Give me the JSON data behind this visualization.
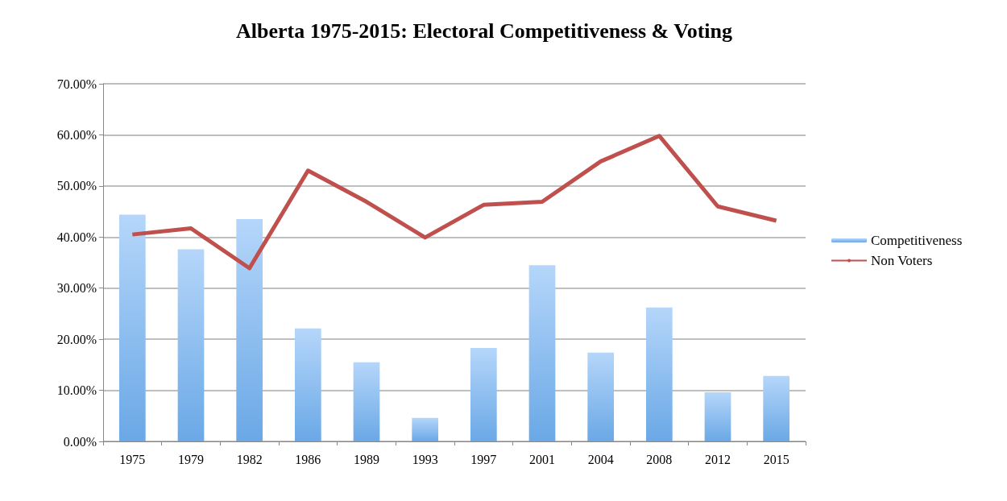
{
  "chart_data": {
    "type": "bar",
    "title": "Alberta 1975-2015: Electoral Competitiveness & Voting",
    "categories": [
      "1975",
      "1979",
      "1982",
      "1986",
      "1989",
      "1993",
      "1997",
      "2001",
      "2004",
      "2008",
      "2012",
      "2015"
    ],
    "series": [
      {
        "name": "Competitiveness",
        "color": "#6aa8e6",
        "values": [
          44.4,
          37.6,
          43.5,
          22.1,
          15.5,
          4.6,
          18.3,
          34.5,
          17.4,
          26.2,
          9.6,
          12.8
        ]
      },
      {
        "name": "Non Voters",
        "type": "line",
        "color": "#c0504d",
        "values": [
          40.5,
          41.7,
          33.9,
          53.0,
          46.9,
          39.9,
          46.3,
          46.9,
          54.8,
          59.8,
          46.0,
          43.2
        ]
      }
    ],
    "ylim": [
      0,
      70
    ],
    "yticks": [
      {
        "value": 0,
        "label": "0.00%"
      },
      {
        "value": 10,
        "label": "10.00%"
      },
      {
        "value": 20,
        "label": "20.00%"
      },
      {
        "value": 30,
        "label": "30.00%"
      },
      {
        "value": 40,
        "label": "40.00%"
      },
      {
        "value": 50,
        "label": "50.00%"
      },
      {
        "value": 60,
        "label": "60.00%"
      },
      {
        "value": 70,
        "label": "70.00%"
      }
    ],
    "grid": "y",
    "legend": "right",
    "marker": "none"
  }
}
